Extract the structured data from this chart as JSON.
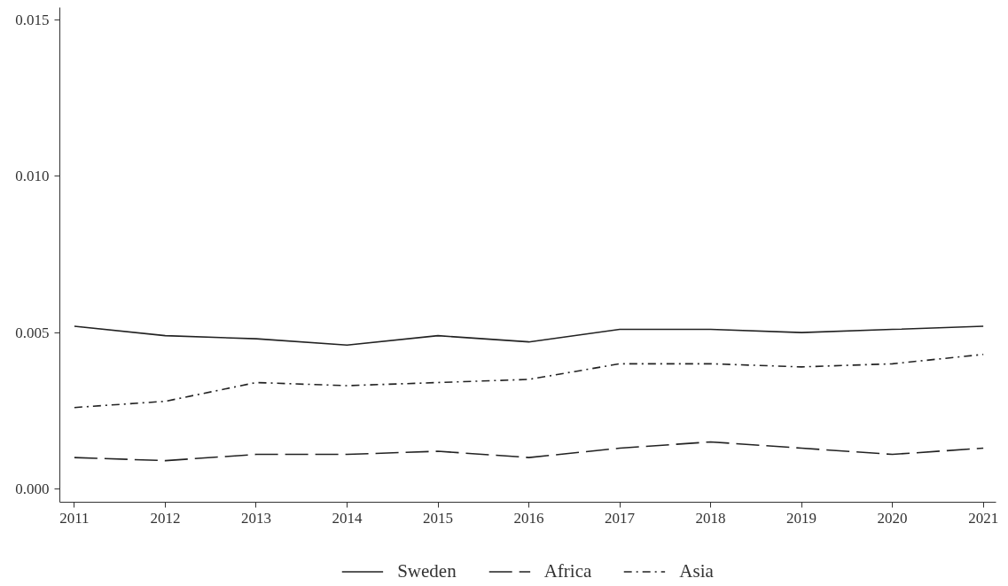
{
  "chart_data": {
    "type": "line",
    "x": [
      2011,
      2012,
      2013,
      2014,
      2015,
      2016,
      2017,
      2018,
      2019,
      2020,
      2021
    ],
    "series": [
      {
        "name": "Sweden",
        "color": "#222222",
        "line_style": "solid",
        "values": [
          0.0052,
          0.0049,
          0.0048,
          0.0046,
          0.0049,
          0.0047,
          0.0051,
          0.0051,
          0.005,
          0.0051,
          0.0052
        ]
      },
      {
        "name": "Africa",
        "color": "#222222",
        "line_style": "dashed",
        "values": [
          0.001,
          0.0009,
          0.0011,
          0.0011,
          0.0012,
          0.001,
          0.0013,
          0.0015,
          0.0013,
          0.0011,
          0.0013
        ]
      },
      {
        "name": "Asia",
        "color": "#222222",
        "line_style": "dashdot",
        "values": [
          0.0026,
          0.0028,
          0.0034,
          0.0033,
          0.0034,
          0.0035,
          0.004,
          0.004,
          0.0039,
          0.004,
          0.0043
        ]
      }
    ],
    "xlim": [
      2010.84,
      2021.14
    ],
    "xticks": [
      2011,
      2012,
      2013,
      2014,
      2015,
      2016,
      2017,
      2018,
      2019,
      2020,
      2021
    ],
    "ylim": [
      -0.00043,
      0.0154
    ],
    "yticks": [
      {
        "value": 0,
        "label": "0.000"
      },
      {
        "value": 0.005,
        "label": "0.005"
      },
      {
        "value": 0.01,
        "label": "0.010"
      },
      {
        "value": 0.015,
        "label": "0.015"
      }
    ],
    "grid": false,
    "legend": "bottom",
    "marker": "none"
  }
}
